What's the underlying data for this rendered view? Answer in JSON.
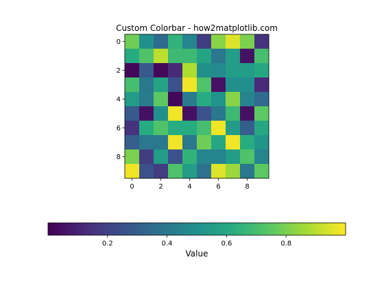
{
  "chart_data": {
    "type": "heatmap",
    "title": "Custom Colorbar - how2matplotlib.com",
    "colormap": "viridis",
    "x_ticks": [
      "0",
      "2",
      "4",
      "6",
      "8"
    ],
    "y_ticks": [
      "0",
      "2",
      "4",
      "6",
      "8"
    ],
    "values": [
      [
        0.78,
        0.5,
        0.35,
        0.65,
        0.45,
        0.18,
        0.82,
        0.95,
        0.8,
        0.15
      ],
      [
        0.62,
        0.72,
        0.9,
        0.68,
        0.68,
        0.58,
        0.4,
        0.55,
        0.05,
        0.7
      ],
      [
        0.02,
        0.28,
        0.02,
        0.12,
        0.88,
        0.5,
        0.48,
        0.55,
        0.55,
        0.6
      ],
      [
        0.7,
        0.4,
        0.58,
        0.25,
        0.98,
        0.72,
        0.05,
        0.5,
        0.5,
        0.12
      ],
      [
        0.55,
        0.42,
        0.75,
        0.02,
        0.42,
        0.62,
        0.52,
        0.82,
        0.45,
        0.35
      ],
      [
        0.28,
        0.05,
        0.5,
        0.98,
        0.05,
        0.25,
        0.4,
        0.68,
        0.05,
        0.75
      ],
      [
        0.15,
        0.62,
        0.72,
        0.62,
        0.62,
        0.7,
        0.98,
        0.55,
        0.3,
        0.6
      ],
      [
        0.3,
        0.4,
        0.4,
        0.98,
        0.4,
        0.78,
        0.6,
        0.98,
        0.62,
        0.52
      ],
      [
        0.8,
        0.18,
        0.55,
        0.25,
        0.65,
        0.45,
        0.45,
        0.55,
        0.72,
        0.45
      ],
      [
        0.98,
        0.25,
        0.18,
        0.72,
        0.55,
        0.38,
        0.95,
        0.85,
        0.4,
        0.75
      ]
    ],
    "colorbar": {
      "label": "Value",
      "ticks": [
        "0.2",
        "0.4",
        "0.6",
        "0.8"
      ],
      "tick_values": [
        0.2,
        0.4,
        0.6,
        0.8
      ],
      "range": [
        0.0,
        1.0
      ],
      "orientation": "horizontal"
    }
  }
}
